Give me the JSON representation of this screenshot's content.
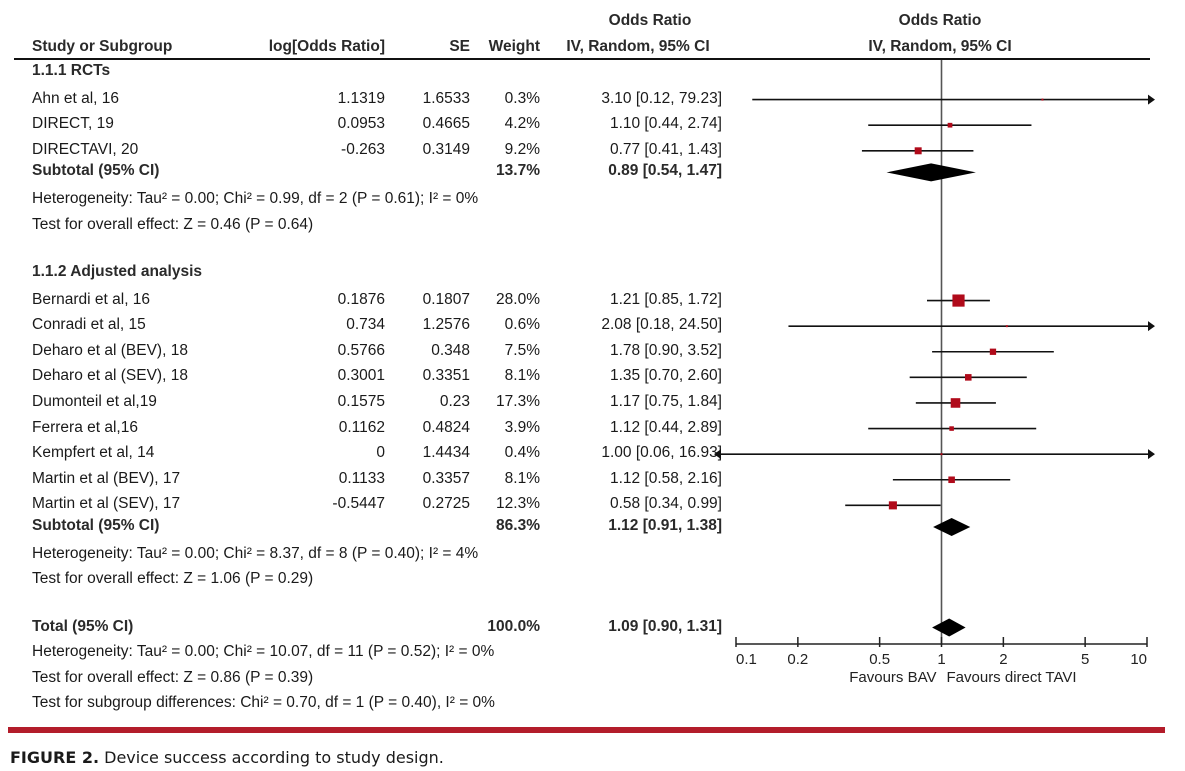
{
  "header": {
    "study_col": "Study or Subgroup",
    "logor_col": "log[Odds Ratio]",
    "se_col": "SE",
    "weight_col": "Weight",
    "or_col_line1": "Odds Ratio",
    "or_col_line2": "IV, Random, 95% CI",
    "plot_col_line1": "Odds Ratio",
    "plot_col_line2": "IV, Random, 95% CI"
  },
  "colors": {
    "study_marker": "#b00a1a",
    "accent_rule": "#b31c2a",
    "diamond": "#000000"
  },
  "caption": {
    "label": "FIGURE 2.",
    "text": " Device success according to study design."
  },
  "chart_data": {
    "type": "forest",
    "title": "Odds Ratio IV, Random, 95% CI",
    "xscale": "log",
    "xlim": [
      0.1,
      10
    ],
    "ticks": [
      "0.1",
      "0.2",
      "0.5",
      "1",
      "2",
      "5",
      "10"
    ],
    "tick_values": [
      0.1,
      0.2,
      0.5,
      1,
      2,
      5,
      10
    ],
    "xlabel_left": "Favours BAV",
    "xlabel_right": "Favours direct TAVI",
    "groups": [
      {
        "name": "1.1.1 RCTs",
        "studies": [
          {
            "study": "Ahn et al, 16",
            "logor": "1.1319",
            "se": "1.6533",
            "weight": "0.3%",
            "ci_text": "3.10 [0.12, 79.23]",
            "or": 3.1,
            "lo": 0.12,
            "hi": 79.23,
            "w": 0.3
          },
          {
            "study": "DIRECT, 19",
            "logor": "0.0953",
            "se": "0.4665",
            "weight": "4.2%",
            "ci_text": "1.10 [0.44, 2.74]",
            "or": 1.1,
            "lo": 0.44,
            "hi": 2.74,
            "w": 4.2
          },
          {
            "study": "DIRECTAVI, 20",
            "logor": "-0.263",
            "se": "0.3149",
            "weight": "9.2%",
            "ci_text": "0.77 [0.41, 1.43]",
            "or": 0.77,
            "lo": 0.41,
            "hi": 1.43,
            "w": 9.2
          }
        ],
        "subtotal": {
          "label": "Subtotal (95% CI)",
          "weight": "13.7%",
          "ci_text": "0.89 [0.54, 1.47]",
          "or": 0.89,
          "lo": 0.54,
          "hi": 1.47
        },
        "heterogeneity": "Heterogeneity: Tau² = 0.00; Chi² = 0.99, df = 2 (P = 0.61); I² = 0%",
        "overall": "Test for overall effect: Z = 0.46 (P = 0.64)"
      },
      {
        "name": "1.1.2 Adjusted analysis",
        "studies": [
          {
            "study": "Bernardi et al, 16",
            "logor": "0.1876",
            "se": "0.1807",
            "weight": "28.0%",
            "ci_text": "1.21 [0.85, 1.72]",
            "or": 1.21,
            "lo": 0.85,
            "hi": 1.72,
            "w": 28.0
          },
          {
            "study": "Conradi et al, 15",
            "logor": "0.734",
            "se": "1.2576",
            "weight": "0.6%",
            "ci_text": "2.08 [0.18, 24.50]",
            "or": 2.08,
            "lo": 0.18,
            "hi": 24.5,
            "w": 0.6
          },
          {
            "study": "Deharo et al (BEV), 18",
            "logor": "0.5766",
            "se": "0.348",
            "weight": "7.5%",
            "ci_text": "1.78 [0.90, 3.52]",
            "or": 1.78,
            "lo": 0.9,
            "hi": 3.52,
            "w": 7.5
          },
          {
            "study": "Deharo et al (SEV), 18",
            "logor": "0.3001",
            "se": "0.3351",
            "weight": "8.1%",
            "ci_text": "1.35 [0.70, 2.60]",
            "or": 1.35,
            "lo": 0.7,
            "hi": 2.6,
            "w": 8.1
          },
          {
            "study": "Dumonteil et al,19",
            "logor": "0.1575",
            "se": "0.23",
            "weight": "17.3%",
            "ci_text": "1.17 [0.75, 1.84]",
            "or": 1.17,
            "lo": 0.75,
            "hi": 1.84,
            "w": 17.3
          },
          {
            "study": "Ferrera et al,16",
            "logor": "0.1162",
            "se": "0.4824",
            "weight": "3.9%",
            "ci_text": "1.12 [0.44, 2.89]",
            "or": 1.12,
            "lo": 0.44,
            "hi": 2.89,
            "w": 3.9
          },
          {
            "study": "Kempfert et al, 14",
            "logor": "0",
            "se": "1.4434",
            "weight": "0.4%",
            "ci_text": "1.00 [0.06, 16.93]",
            "or": 1.0,
            "lo": 0.06,
            "hi": 16.93,
            "w": 0.4
          },
          {
            "study": "Martin et al (BEV), 17",
            "logor": "0.1133",
            "se": "0.3357",
            "weight": "8.1%",
            "ci_text": "1.12 [0.58, 2.16]",
            "or": 1.12,
            "lo": 0.58,
            "hi": 2.16,
            "w": 8.1
          },
          {
            "study": "Martin et al (SEV), 17",
            "logor": "-0.5447",
            "se": "0.2725",
            "weight": "12.3%",
            "ci_text": "0.58 [0.34, 0.99]",
            "or": 0.58,
            "lo": 0.34,
            "hi": 0.99,
            "w": 12.3
          }
        ],
        "subtotal": {
          "label": "Subtotal (95% CI)",
          "weight": "86.3%",
          "ci_text": "1.12 [0.91, 1.38]",
          "or": 1.12,
          "lo": 0.91,
          "hi": 1.38
        },
        "heterogeneity": "Heterogeneity: Tau² = 0.00; Chi² = 8.37, df = 8 (P = 0.40); I² = 4%",
        "overall": "Test for overall effect: Z = 1.06 (P = 0.29)"
      }
    ],
    "total": {
      "label": "Total (95% CI)",
      "weight": "100.0%",
      "ci_text": "1.09 [0.90, 1.31]",
      "or": 1.09,
      "lo": 0.9,
      "hi": 1.31,
      "heterogeneity": "Heterogeneity: Tau² = 0.00; Chi² = 10.07, df = 11 (P = 0.52); I² = 0%",
      "overall": "Test for overall effect: Z = 0.86 (P = 0.39)",
      "subgroup": "Test for subgroup differences: Chi² = 0.70, df = 1 (P = 0.40), I² = 0%"
    }
  }
}
